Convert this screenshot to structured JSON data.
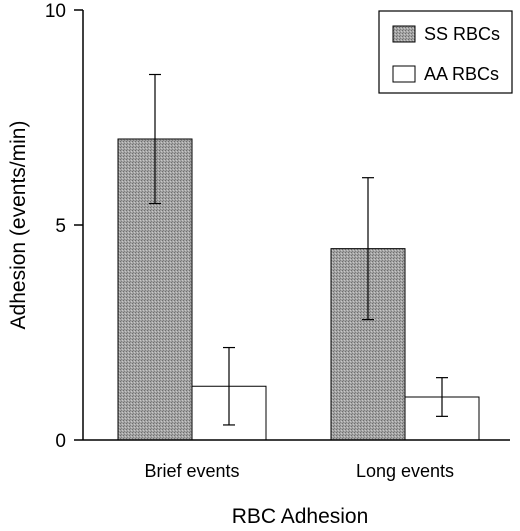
{
  "chart_data": {
    "type": "bar",
    "title": "",
    "xlabel": "RBC Adhesion",
    "ylabel": "Adhesion (events/min)",
    "ylim": [
      0,
      10
    ],
    "yticks": [
      "0",
      "5",
      "10"
    ],
    "categories": [
      "Brief events",
      "Long events"
    ],
    "series": [
      {
        "name": "SS RBCs",
        "values": [
          7.0,
          4.45
        ],
        "error": [
          1.5,
          1.65
        ],
        "color": "#9a9a9a"
      },
      {
        "name": "AA RBCs",
        "values": [
          1.25,
          1.0
        ],
        "error": [
          0.9,
          0.45
        ],
        "color": "#ffffff"
      }
    ],
    "grid": false,
    "legend": "top-right"
  }
}
